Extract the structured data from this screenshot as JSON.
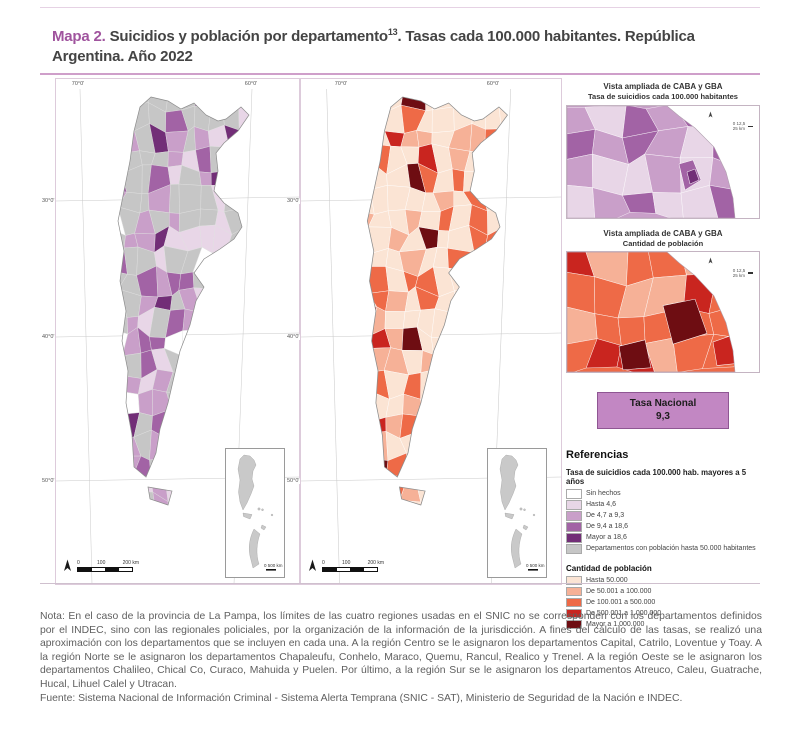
{
  "header": {
    "map_label": "Mapa 2.",
    "title_main": " Suicidios y población por departamento",
    "footnote_marker": "13",
    "title_tail": ". Tasas cada 100.000 habitantes. República Argentina. Año 2022"
  },
  "maps": {
    "suicide": {
      "top_ticks": [
        "70°0'",
        "60°0'"
      ],
      "left_ticks": [
        "30°0'",
        "40°0'",
        "50°0'"
      ],
      "scale_ticks": [
        "0",
        "100",
        "200 km"
      ],
      "inset_scale": "0 500 km"
    },
    "population": {
      "top_ticks": [
        "70°0'",
        "60°0'"
      ],
      "left_ticks": [
        "30°0'",
        "40°0'",
        "50°0'"
      ],
      "scale_ticks": [
        "0",
        "100",
        "200 km"
      ],
      "inset_scale": "0 500 km"
    }
  },
  "right_panel": {
    "insets": [
      {
        "title": "Vista ampliada de CABA y GBA",
        "subtitle": "Tasa de suicidios cada 100.000 habitantes",
        "scale": "0 12,5 25 km"
      },
      {
        "title": "Vista ampliada de CABA y GBA",
        "subtitle": "Cantidad de población",
        "scale": "0 12,5 25 km"
      }
    ],
    "tasa_nacional": {
      "label": "Tasa Nacional",
      "value": "9,3"
    },
    "referencias": {
      "heading": "Referencias",
      "suicide_legend": {
        "title": "Tasa de suicidios cada 100.000 hab. mayores a 5 años",
        "items": [
          {
            "label": "Sin hechos",
            "color": "#ffffff"
          },
          {
            "label": "Hasta 4,6",
            "color": "#e8d6e7"
          },
          {
            "label": "De 4,7 a 9,3",
            "color": "#c99fc9"
          },
          {
            "label": "De 9,4 a 18,6",
            "color": "#a263a5"
          },
          {
            "label": "Mayor a 18,6",
            "color": "#722e77"
          },
          {
            "label": "Departamentos con población hasta 50.000 habitantes",
            "color": "#c6c6c6"
          }
        ]
      },
      "population_legend": {
        "title": "Cantidad de población",
        "items": [
          {
            "label": "Hasta 50.000",
            "color": "#fbe4d4"
          },
          {
            "label": "De 50.001 a 100.000",
            "color": "#f6b197"
          },
          {
            "label": "De 100.001 a 500.000",
            "color": "#ee6a47"
          },
          {
            "label": "De 500.001 a 1.000.000",
            "color": "#c9251f"
          },
          {
            "label": "Mayor a 1.000.000",
            "color": "#6e0d12"
          }
        ]
      }
    }
  },
  "footer": {
    "nota": "Nota: En el caso de la provincia de La Pampa, los límites de las cuatro regiones usadas en el SNIC no se corresponden con los departamentos definidos por el INDEC, sino con las regionales policiales, por la organización de la información de la jurisdicción. A fines del cálculo de las tasas, se realizó una aproximación con los departamentos que se incluyen en cada una. A la región Centro se le asignaron los departamentos Capital, Catrilo, Loventue y Toay. A la región Norte se le asignaron los departamentos Chapaleufu, Conhelo, Maraco, Quemu, Rancul, Realico y Trenel. A la región Oeste se le asignaron los departamentos Chalileo, Chical Co, Curaco, Mahuida y Puelen. Por último, a la región Sur se le asignaron los departamentos Atreuco, Caleu, Guatrache, Hucal, Lihuel Calel y Utracan.",
    "fuente": "Fuente: Sistema Nacional de Información Criminal - Sistema Alerta Temprana (SNIC - SAT), Ministerio de Seguridad de la Nación e INDEC."
  },
  "colors": {
    "accent_purple": "#a0549e",
    "title_rule": "#cf9fca",
    "tasa_box_fill": "#c287c3",
    "tasa_box_border": "#8f5693",
    "mini_map_gray": "#c9c9c9"
  }
}
